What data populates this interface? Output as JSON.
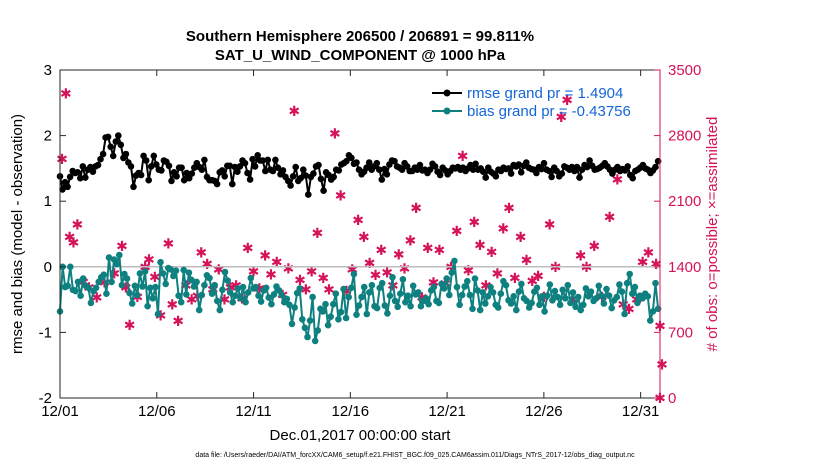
{
  "titles": {
    "line1": "Southern Hemisphere 206500 / 206891 = 99.811%",
    "line2": "SAT_U_WIND_COMPONENT @ 1000 hPa"
  },
  "footnote": "data file: /Users/raeder/DAI/ATM_forcXX/CAM6_setup/f.e21.FHIST_BGC.f09_025.CAM6assim.011/Diags_NTrS_2017-12/obs_diag_output.nc",
  "colors": {
    "rmse": "#000000",
    "bias": "#0e8080",
    "obs": "#d4135a",
    "zero_line": "#bdbdbd"
  },
  "chart_data": {
    "type": "line",
    "xlabel": "Dec.01,2017 00:00:00 start",
    "ylabel_left": "rmse and bias (model - observation)",
    "ylabel_right": "# of obs: o=possible; ×=assimilated",
    "xlim": [
      0,
      31
    ],
    "ylim_left": [
      -2,
      3
    ],
    "ylim_right": [
      0,
      3500
    ],
    "xticks": [
      0,
      5,
      10,
      15,
      20,
      25,
      30
    ],
    "xtick_labels": [
      "12/01",
      "12/06",
      "12/11",
      "12/16",
      "12/21",
      "12/26",
      "12/31"
    ],
    "yticks_left": [
      -2,
      -1,
      0,
      1,
      2,
      3
    ],
    "ytick_labels_left": [
      "-2",
      "-1",
      "0",
      "1",
      "2",
      "3"
    ],
    "yticks_right": [
      0,
      700,
      1400,
      2100,
      2800,
      3500
    ],
    "ytick_labels_right": [
      "0",
      "700",
      "1400",
      "2100",
      "2800",
      "3500"
    ],
    "legend": {
      "position": "top-right",
      "rmse_label": "rmse grand pr = 1.4904",
      "bias_label": "bias grand pr = -0.43756"
    },
    "series": [
      {
        "name": "rmse",
        "axis": "left",
        "marker": "circle",
        "values": [
          1.38,
          1.18,
          1.29,
          1.22,
          1.37,
          1.46,
          1.43,
          1.44,
          1.35,
          1.53,
          1.36,
          1.48,
          1.52,
          1.45,
          1.53,
          1.55,
          1.64,
          1.72,
          1.97,
          1.98,
          1.83,
          1.69,
          1.91,
          2.0,
          1.86,
          1.66,
          1.72,
          1.59,
          1.53,
          1.22,
          1.39,
          1.43,
          1.4,
          1.69,
          1.62,
          1.32,
          1.53,
          1.69,
          1.56,
          1.48,
          1.47,
          1.62,
          1.6,
          1.54,
          1.31,
          1.44,
          1.38,
          1.51,
          1.51,
          1.32,
          1.43,
          1.35,
          1.42,
          1.51,
          1.58,
          1.52,
          1.48,
          1.63,
          1.37,
          1.32,
          1.32,
          1.31,
          1.26,
          1.44,
          1.47,
          1.38,
          1.54,
          1.54,
          1.26,
          1.52,
          1.45,
          1.53,
          1.62,
          1.58,
          1.43,
          1.33,
          1.64,
          1.53,
          1.7,
          1.62,
          1.62,
          1.46,
          1.63,
          1.48,
          1.46,
          1.63,
          1.51,
          1.41,
          1.47,
          1.37,
          1.31,
          1.24,
          1.38,
          1.52,
          1.31,
          1.35,
          1.48,
          1.39,
          1.1,
          1.37,
          1.42,
          1.53,
          1.55,
          1.34,
          1.16,
          1.44,
          1.4,
          1.33,
          1.37,
          1.48,
          1.47,
          1.56,
          1.58,
          1.61,
          1.7,
          1.66,
          1.57,
          1.59,
          1.48,
          1.41,
          1.45,
          1.51,
          1.59,
          1.48,
          1.53,
          1.58,
          1.48,
          1.33,
          1.49,
          1.41,
          1.56,
          1.62,
          1.61,
          1.53,
          1.51,
          1.48,
          1.58,
          1.53,
          1.46,
          1.46,
          1.51,
          1.48,
          1.55,
          1.47,
          1.48,
          1.43,
          1.48,
          1.57,
          1.53,
          1.45,
          1.4,
          1.51,
          1.47,
          1.41,
          1.46,
          1.51,
          1.5,
          1.52,
          1.48,
          1.51,
          1.46,
          1.5,
          1.55,
          1.48,
          1.57,
          1.48,
          1.5,
          1.45,
          1.36,
          1.51,
          1.45,
          1.42,
          1.38,
          1.48,
          1.46,
          1.51,
          1.49,
          1.5,
          1.42,
          1.55,
          1.53,
          1.56,
          1.44,
          1.54,
          1.59,
          1.51,
          1.49,
          1.48,
          1.43,
          1.52,
          1.49,
          1.58,
          1.48,
          1.46,
          1.37,
          1.51,
          1.46,
          1.38,
          1.42,
          1.53,
          1.51,
          1.48,
          1.52,
          1.46,
          1.52,
          1.36,
          1.48,
          1.55,
          1.52,
          1.62,
          1.54,
          1.48,
          1.49,
          1.51,
          1.54,
          1.58,
          1.53,
          1.48,
          1.42,
          1.48,
          1.52,
          1.46,
          1.49,
          1.47,
          1.53,
          1.4,
          1.35,
          1.46,
          1.48,
          1.51,
          1.55,
          1.5,
          1.48,
          1.43,
          1.47,
          1.52,
          1.61
        ]
      },
      {
        "name": "bias",
        "axis": "left",
        "marker": "circle",
        "values": [
          -0.68,
          -0.0,
          -0.31,
          -0.29,
          0.0,
          -0.35,
          -0.37,
          -0.23,
          -0.44,
          -0.18,
          -0.29,
          -0.32,
          -0.55,
          -0.37,
          -0.32,
          -0.23,
          -0.16,
          -0.12,
          -0.41,
          0.14,
          -0.23,
          0.11,
          0.04,
          0.18,
          -0.28,
          -0.11,
          -0.18,
          -0.4,
          -0.56,
          -0.29,
          -0.43,
          -0.1,
          -0.3,
          -0.07,
          -0.6,
          -0.32,
          -0.48,
          -0.31,
          -0.72,
          0.07,
          -0.1,
          -0.26,
          -0.02,
          -0.04,
          -0.14,
          -0.06,
          -0.44,
          -0.54,
          -0.05,
          -0.42,
          -0.09,
          -0.2,
          -0.3,
          -0.23,
          -0.66,
          -0.43,
          -0.28,
          -0.13,
          -0.17,
          -0.41,
          -0.28,
          -0.52,
          -0.66,
          -0.35,
          -0.08,
          -0.21,
          -0.39,
          -0.54,
          -0.44,
          -0.33,
          -0.48,
          -0.31,
          -0.54,
          -0.39,
          -0.17,
          -0.33,
          -0.31,
          -0.44,
          -0.53,
          -0.36,
          -0.32,
          -0.47,
          -0.57,
          -0.42,
          -0.3,
          -0.36,
          -0.43,
          -0.54,
          -0.49,
          -0.58,
          -0.87,
          -0.62,
          -0.4,
          -0.33,
          -0.8,
          -0.93,
          -1.07,
          -0.82,
          -0.46,
          -1.13,
          -0.97,
          -0.64,
          -0.68,
          -0.57,
          -0.89,
          -0.76,
          -0.57,
          -0.41,
          -0.8,
          -0.69,
          -0.34,
          -0.78,
          -0.46,
          -0.32,
          -0.11,
          -0.73,
          -0.59,
          -0.46,
          -0.31,
          -0.72,
          -0.39,
          -0.28,
          -0.6,
          -0.63,
          -0.32,
          -0.25,
          -0.59,
          -0.71,
          -0.44,
          -0.16,
          -0.52,
          -0.61,
          -0.41,
          -0.19,
          -0.54,
          -0.44,
          -0.6,
          -0.29,
          -0.42,
          -0.39,
          -0.6,
          -0.52,
          -0.48,
          -0.57,
          -0.36,
          -0.31,
          -0.52,
          -0.55,
          -0.26,
          -0.33,
          -0.18,
          -0.43,
          -0.09,
          0.09,
          -0.31,
          -0.58,
          -0.43,
          -0.3,
          -0.22,
          -0.43,
          -0.64,
          -0.18,
          -0.36,
          -0.66,
          -0.39,
          -0.56,
          -0.45,
          -0.31,
          -0.39,
          -0.58,
          -0.62,
          -0.41,
          -0.22,
          -0.28,
          -0.51,
          -0.56,
          -0.45,
          -0.66,
          -0.38,
          -0.26,
          -0.48,
          -0.52,
          -0.62,
          -0.55,
          -0.38,
          -0.32,
          -0.58,
          -0.45,
          -0.68,
          -0.44,
          -0.27,
          -0.51,
          -0.37,
          -0.46,
          -0.58,
          -0.35,
          -0.48,
          -0.28,
          -0.55,
          -0.39,
          -0.61,
          -0.46,
          -0.66,
          -0.58,
          -0.33,
          -0.45,
          -0.38,
          -0.52,
          -0.48,
          -0.29,
          -0.44,
          -0.56,
          -0.34,
          -0.44,
          -0.63,
          -0.51,
          -0.46,
          -0.27,
          -0.38,
          -0.72,
          -0.25,
          -0.11,
          -0.41,
          -0.31,
          -0.55,
          -0.44,
          -0.48,
          -0.41,
          -0.45,
          -0.82,
          -0.68,
          -0.25,
          -0.64
        ]
      },
      {
        "name": "obs assimilated",
        "axis": "right",
        "marker": "star",
        "points": [
          [
            0.1,
            2550
          ],
          [
            0.3,
            3250
          ],
          [
            0.5,
            1720
          ],
          [
            0.7,
            1660
          ],
          [
            0.9,
            1850
          ],
          [
            1.2,
            1240
          ],
          [
            1.5,
            1180
          ],
          [
            1.9,
            1070
          ],
          [
            2.3,
            1230
          ],
          [
            2.8,
            1330
          ],
          [
            3.2,
            1620
          ],
          [
            3.4,
            1180
          ],
          [
            3.6,
            780
          ],
          [
            4.0,
            1080
          ],
          [
            4.4,
            1400
          ],
          [
            4.6,
            1480
          ],
          [
            4.9,
            1290
          ],
          [
            5.2,
            880
          ],
          [
            5.6,
            1650
          ],
          [
            5.8,
            1000
          ],
          [
            6.1,
            820
          ],
          [
            6.5,
            1200
          ],
          [
            6.8,
            1050
          ],
          [
            7.1,
            1090
          ],
          [
            7.3,
            1550
          ],
          [
            7.6,
            1430
          ],
          [
            7.9,
            1160
          ],
          [
            8.2,
            1370
          ],
          [
            8.5,
            1050
          ],
          [
            8.8,
            1180
          ],
          [
            9.1,
            1200
          ],
          [
            9.4,
            1060
          ],
          [
            9.7,
            1600
          ],
          [
            10.0,
            1350
          ],
          [
            10.3,
            1170
          ],
          [
            10.6,
            1520
          ],
          [
            10.9,
            1320
          ],
          [
            11.2,
            1450
          ],
          [
            11.5,
            1100
          ],
          [
            11.8,
            1380
          ],
          [
            12.1,
            3060
          ],
          [
            12.4,
            1260
          ],
          [
            12.7,
            1160
          ],
          [
            13.0,
            1350
          ],
          [
            13.3,
            1760
          ],
          [
            13.6,
            1280
          ],
          [
            13.9,
            1160
          ],
          [
            14.2,
            2820
          ],
          [
            14.5,
            2160
          ],
          [
            14.8,
            1140
          ],
          [
            15.1,
            1370
          ],
          [
            15.4,
            1900
          ],
          [
            15.7,
            1720
          ],
          [
            16.0,
            1440
          ],
          [
            16.3,
            1310
          ],
          [
            16.6,
            1580
          ],
          [
            16.9,
            1340
          ],
          [
            17.2,
            1200
          ],
          [
            17.5,
            1530
          ],
          [
            17.8,
            1380
          ],
          [
            18.1,
            1680
          ],
          [
            18.4,
            2030
          ],
          [
            18.7,
            1070
          ],
          [
            19.0,
            1600
          ],
          [
            19.3,
            1230
          ],
          [
            19.6,
            1580
          ],
          [
            19.9,
            1220
          ],
          [
            20.2,
            1400
          ],
          [
            20.5,
            1780
          ],
          [
            20.8,
            2580
          ],
          [
            21.1,
            1360
          ],
          [
            21.4,
            1880
          ],
          [
            21.7,
            1630
          ],
          [
            22.0,
            1200
          ],
          [
            22.3,
            1560
          ],
          [
            22.6,
            1330
          ],
          [
            22.9,
            1810
          ],
          [
            23.2,
            2030
          ],
          [
            23.5,
            1280
          ],
          [
            23.8,
            1720
          ],
          [
            24.1,
            1470
          ],
          [
            24.4,
            1250
          ],
          [
            24.7,
            1300
          ],
          [
            25.0,
            1080
          ],
          [
            25.3,
            1850
          ],
          [
            25.6,
            1400
          ],
          [
            25.9,
            3000
          ],
          [
            26.2,
            3180
          ],
          [
            26.5,
            1050
          ],
          [
            26.9,
            1520
          ],
          [
            27.2,
            1400
          ],
          [
            27.6,
            1620
          ],
          [
            28.0,
            1080
          ],
          [
            28.4,
            1930
          ],
          [
            28.8,
            2330
          ],
          [
            29.1,
            1000
          ],
          [
            29.4,
            950
          ],
          [
            29.8,
            1050
          ],
          [
            30.1,
            1450
          ],
          [
            30.4,
            1550
          ],
          [
            30.8,
            1430
          ],
          [
            31.0,
            770
          ],
          [
            31.1,
            360
          ],
          [
            31.0,
            0
          ]
        ]
      }
    ]
  }
}
